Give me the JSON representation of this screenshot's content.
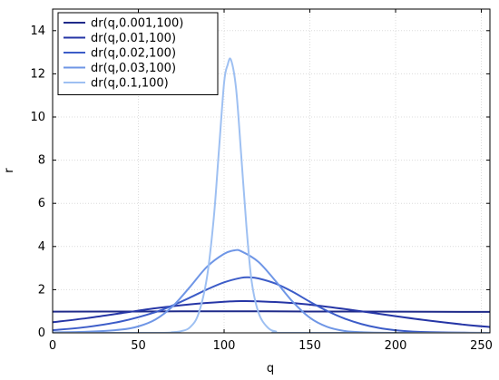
{
  "chart_data": {
    "type": "line",
    "title": "",
    "xlabel": "q",
    "ylabel": "r",
    "xlim": [
      0,
      255
    ],
    "ylim": [
      0,
      15
    ],
    "x_ticks": [
      0,
      50,
      100,
      150,
      200,
      250
    ],
    "y_ticks": [
      0,
      2,
      4,
      6,
      8,
      10,
      12,
      14
    ],
    "grid": true,
    "legend_position": "top-left",
    "series": [
      {
        "name": "dr(q,0.001,100)",
        "color": "#1f2a8a",
        "points": [
          [
            0,
            0.98
          ],
          [
            50,
            0.99
          ],
          [
            100,
            1.0
          ],
          [
            150,
            0.99
          ],
          [
            200,
            0.98
          ],
          [
            255,
            0.97
          ]
        ]
      },
      {
        "name": "dr(q,0.01,100)",
        "color": "#2636a6",
        "points": [
          [
            0,
            0.49
          ],
          [
            20,
            0.68
          ],
          [
            40,
            0.91
          ],
          [
            60,
            1.14
          ],
          [
            80,
            1.32
          ],
          [
            100,
            1.44
          ],
          [
            110,
            1.47
          ],
          [
            120,
            1.46
          ],
          [
            140,
            1.38
          ],
          [
            160,
            1.21
          ],
          [
            180,
            1.0
          ],
          [
            200,
            0.77
          ],
          [
            220,
            0.56
          ],
          [
            240,
            0.38
          ],
          [
            255,
            0.27
          ]
        ]
      },
      {
        "name": "dr(q,0.02,100)",
        "color": "#3c5cc8",
        "points": [
          [
            0,
            0.12
          ],
          [
            20,
            0.27
          ],
          [
            40,
            0.53
          ],
          [
            60,
            0.96
          ],
          [
            70,
            1.27
          ],
          [
            80,
            1.63
          ],
          [
            90,
            2.01
          ],
          [
            100,
            2.34
          ],
          [
            110,
            2.55
          ],
          [
            115,
            2.57
          ],
          [
            120,
            2.52
          ],
          [
            130,
            2.28
          ],
          [
            140,
            1.9
          ],
          [
            150,
            1.44
          ],
          [
            160,
            1.02
          ],
          [
            170,
            0.67
          ],
          [
            180,
            0.41
          ],
          [
            190,
            0.23
          ],
          [
            200,
            0.12
          ],
          [
            210,
            0.06
          ],
          [
            220,
            0.03
          ],
          [
            240,
            0.01
          ],
          [
            255,
            0.0
          ]
        ]
      },
      {
        "name": "dr(q,0.03,100)",
        "color": "#6f96e6",
        "points": [
          [
            0,
            0.02
          ],
          [
            20,
            0.05
          ],
          [
            40,
            0.15
          ],
          [
            50,
            0.3
          ],
          [
            60,
            0.62
          ],
          [
            70,
            1.23
          ],
          [
            80,
            2.12
          ],
          [
            90,
            3.06
          ],
          [
            100,
            3.66
          ],
          [
            106,
            3.82
          ],
          [
            110,
            3.78
          ],
          [
            120,
            3.29
          ],
          [
            130,
            2.4
          ],
          [
            140,
            1.44
          ],
          [
            150,
            0.7
          ],
          [
            160,
            0.28
          ],
          [
            170,
            0.09
          ],
          [
            180,
            0.03
          ],
          [
            200,
            0.0
          ],
          [
            255,
            0.0
          ]
        ]
      },
      {
        "name": "dr(q,0.1,100)",
        "color": "#9ec0f2",
        "points": [
          [
            0,
            0.0
          ],
          [
            60,
            0.0
          ],
          [
            70,
            0.03
          ],
          [
            75,
            0.08
          ],
          [
            80,
            0.25
          ],
          [
            85,
            0.87
          ],
          [
            90,
            2.57
          ],
          [
            94,
            5.35
          ],
          [
            97,
            8.48
          ],
          [
            100,
            11.6
          ],
          [
            102,
            12.4
          ],
          [
            104,
            12.65
          ],
          [
            107,
            11.3
          ],
          [
            110,
            8.2
          ],
          [
            113,
            4.95
          ],
          [
            116,
            2.42
          ],
          [
            120,
            0.95
          ],
          [
            125,
            0.28
          ],
          [
            130,
            0.07
          ],
          [
            140,
            0.0
          ],
          [
            255,
            0.0
          ]
        ]
      }
    ]
  }
}
